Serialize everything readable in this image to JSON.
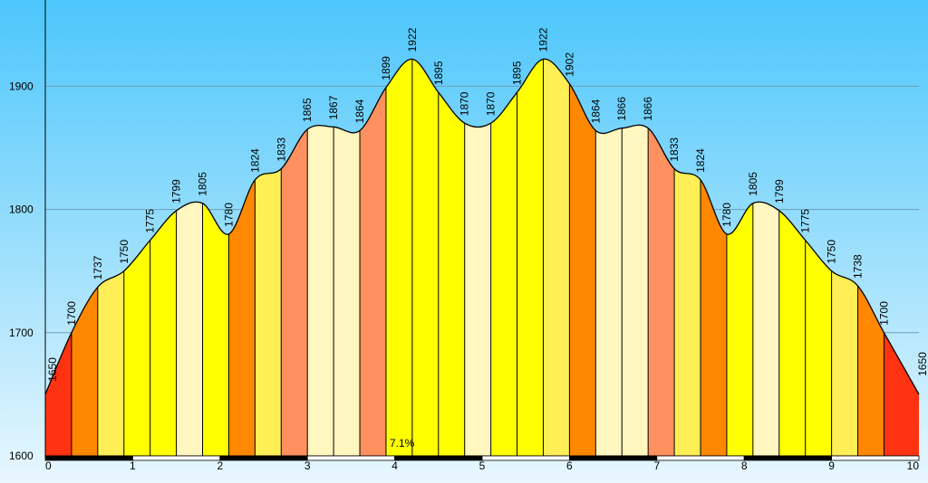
{
  "chart_data": {
    "type": "area",
    "title": "",
    "xlabel": "",
    "ylabel": "",
    "xlim": [
      0,
      10
    ],
    "ylim": [
      1600,
      1970
    ],
    "y_ticks": [
      "1600",
      "1700",
      "1800",
      "1900"
    ],
    "x_ticks": [
      "0",
      "1",
      "2",
      "3",
      "4",
      "5",
      "6",
      "7",
      "8",
      "9",
      "10"
    ],
    "grid": "horizontal",
    "annotation": "7.1%",
    "points": [
      {
        "x": 0.0,
        "y": 1650,
        "label": "1650"
      },
      {
        "x": 0.3,
        "y": 1700,
        "label": "1700"
      },
      {
        "x": 0.6,
        "y": 1737,
        "label": "1737"
      },
      {
        "x": 0.9,
        "y": 1750,
        "label": "1750"
      },
      {
        "x": 1.2,
        "y": 1775,
        "label": "1775"
      },
      {
        "x": 1.5,
        "y": 1799,
        "label": "1799"
      },
      {
        "x": 1.8,
        "y": 1805,
        "label": "1805"
      },
      {
        "x": 2.1,
        "y": 1780,
        "label": "1780"
      },
      {
        "x": 2.4,
        "y": 1824,
        "label": "1824"
      },
      {
        "x": 2.7,
        "y": 1833,
        "label": "1833"
      },
      {
        "x": 3.0,
        "y": 1865,
        "label": "1865"
      },
      {
        "x": 3.3,
        "y": 1867,
        "label": "1867"
      },
      {
        "x": 3.6,
        "y": 1864,
        "label": "1864"
      },
      {
        "x": 3.9,
        "y": 1899,
        "label": "1899"
      },
      {
        "x": 4.2,
        "y": 1922,
        "label": "1922"
      },
      {
        "x": 4.5,
        "y": 1895,
        "label": "1895"
      },
      {
        "x": 4.8,
        "y": 1870,
        "label": "1870"
      },
      {
        "x": 5.1,
        "y": 1870,
        "label": "1870"
      },
      {
        "x": 5.4,
        "y": 1895,
        "label": "1895"
      },
      {
        "x": 5.7,
        "y": 1922,
        "label": "1922"
      },
      {
        "x": 6.0,
        "y": 1902,
        "label": "1902"
      },
      {
        "x": 6.3,
        "y": 1864,
        "label": "1864"
      },
      {
        "x": 6.6,
        "y": 1866,
        "label": "1866"
      },
      {
        "x": 6.9,
        "y": 1866,
        "label": "1866"
      },
      {
        "x": 7.2,
        "y": 1833,
        "label": "1833"
      },
      {
        "x": 7.5,
        "y": 1824,
        "label": "1824"
      },
      {
        "x": 7.8,
        "y": 1780,
        "label": "1780"
      },
      {
        "x": 8.1,
        "y": 1805,
        "label": "1805"
      },
      {
        "x": 8.4,
        "y": 1799,
        "label": "1799"
      },
      {
        "x": 8.7,
        "y": 1775,
        "label": "1775"
      },
      {
        "x": 9.0,
        "y": 1750,
        "label": "1750"
      },
      {
        "x": 9.3,
        "y": 1738,
        "label": "1738"
      },
      {
        "x": 9.6,
        "y": 1700,
        "label": "1700"
      },
      {
        "x": 10.0,
        "y": 1650,
        "label": "1650"
      }
    ],
    "segment_colors": [
      "#ff3311",
      "#ff8800",
      "#ffee55",
      "#ffff00",
      "#ffff00",
      "#fff6c0",
      "#ffff00",
      "#ff8800",
      "#ffee55",
      "#ff9060",
      "#fff6c0",
      "#fff6c0",
      "#ff9060",
      "#ffff00",
      "#ffff00",
      "#ffff00",
      "#fff6c0",
      "#ffff00",
      "#ffff00",
      "#ffee55",
      "#ff8800",
      "#fff6c0",
      "#fff6c0",
      "#ff9060",
      "#ffee55",
      "#ff8800",
      "#ffff00",
      "#fff6c0",
      "#ffff00",
      "#ffff00",
      "#ffee55",
      "#ff8800",
      "#ff3311"
    ],
    "sky_colors": [
      "#4cc6fb",
      "#e8f7fe"
    ]
  }
}
